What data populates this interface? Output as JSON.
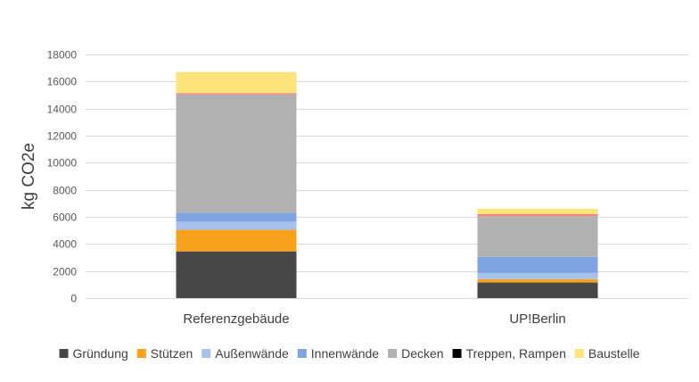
{
  "chart_data": {
    "type": "bar",
    "stacked": true,
    "title": "",
    "xlabel": "",
    "ylabel": "kg CO2e",
    "ylim": [
      0,
      18000
    ],
    "yticks": [
      0,
      2000,
      4000,
      6000,
      8000,
      10000,
      12000,
      14000,
      16000,
      18000
    ],
    "grid": true,
    "legend_position": "bottom",
    "categories": [
      "Referenzgebäude",
      "UP!Berlin"
    ],
    "series": [
      {
        "name": "Gründung",
        "color": "#474747",
        "values": [
          3450,
          1150
        ]
      },
      {
        "name": "Stützen",
        "color": "#f8a11b",
        "values": [
          1600,
          250
        ]
      },
      {
        "name": "Außenwände",
        "color": "#a6c2ea",
        "values": [
          600,
          450
        ]
      },
      {
        "name": "Innenwände",
        "color": "#7fa4e2",
        "values": [
          650,
          1200
        ]
      },
      {
        "name": "Decken",
        "color": "#b1b1b1",
        "values": [
          8750,
          3000
        ]
      },
      {
        "name": "",
        "color": "#f0837b",
        "values": [
          100,
          150
        ]
      },
      {
        "name": "Treppen, Rampen",
        "color": "#000000",
        "values": [
          0,
          0
        ]
      },
      {
        "name": "Baustelle",
        "color": "#fde47a",
        "values": [
          1550,
          400
        ]
      }
    ]
  }
}
